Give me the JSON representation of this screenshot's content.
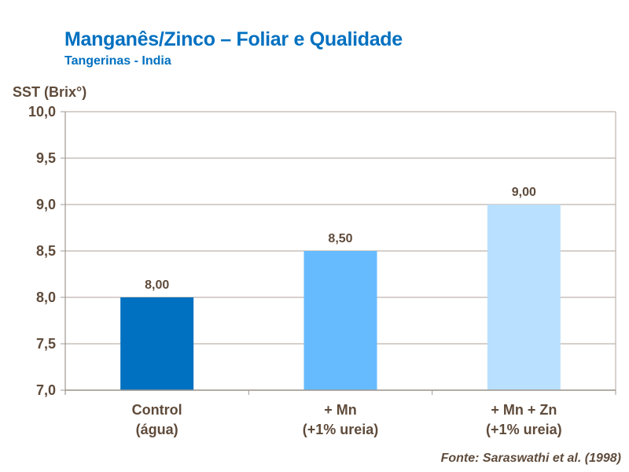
{
  "chart_data": {
    "type": "bar",
    "title": "Manganês/Zinco – Foliar e Qualidade",
    "subtitle": "Tangerinas - India",
    "ylabel": "SST (Brix°)",
    "xlabel": "",
    "categories": [
      [
        "Control",
        "(água)"
      ],
      [
        "+ Mn",
        "(+1% ureia)"
      ],
      [
        "+ Mn + Zn",
        "(+1% ureia)"
      ]
    ],
    "values": [
      8.0,
      8.5,
      9.0
    ],
    "data_labels": [
      "8,00",
      "8,50",
      "9,00"
    ],
    "bar_colors": [
      "#0070c0",
      "#66bbff",
      "#b9e0ff"
    ],
    "ylim": [
      7.0,
      10.0
    ],
    "yticks": [
      7.0,
      7.5,
      8.0,
      8.5,
      9.0,
      9.5,
      10.0
    ],
    "ytick_labels": [
      "7,0",
      "7,5",
      "8,0",
      "8,5",
      "9,0",
      "9,5",
      "10,0"
    ],
    "grid": true,
    "source": "Fonte: Saraswathi et al. (1998)"
  }
}
